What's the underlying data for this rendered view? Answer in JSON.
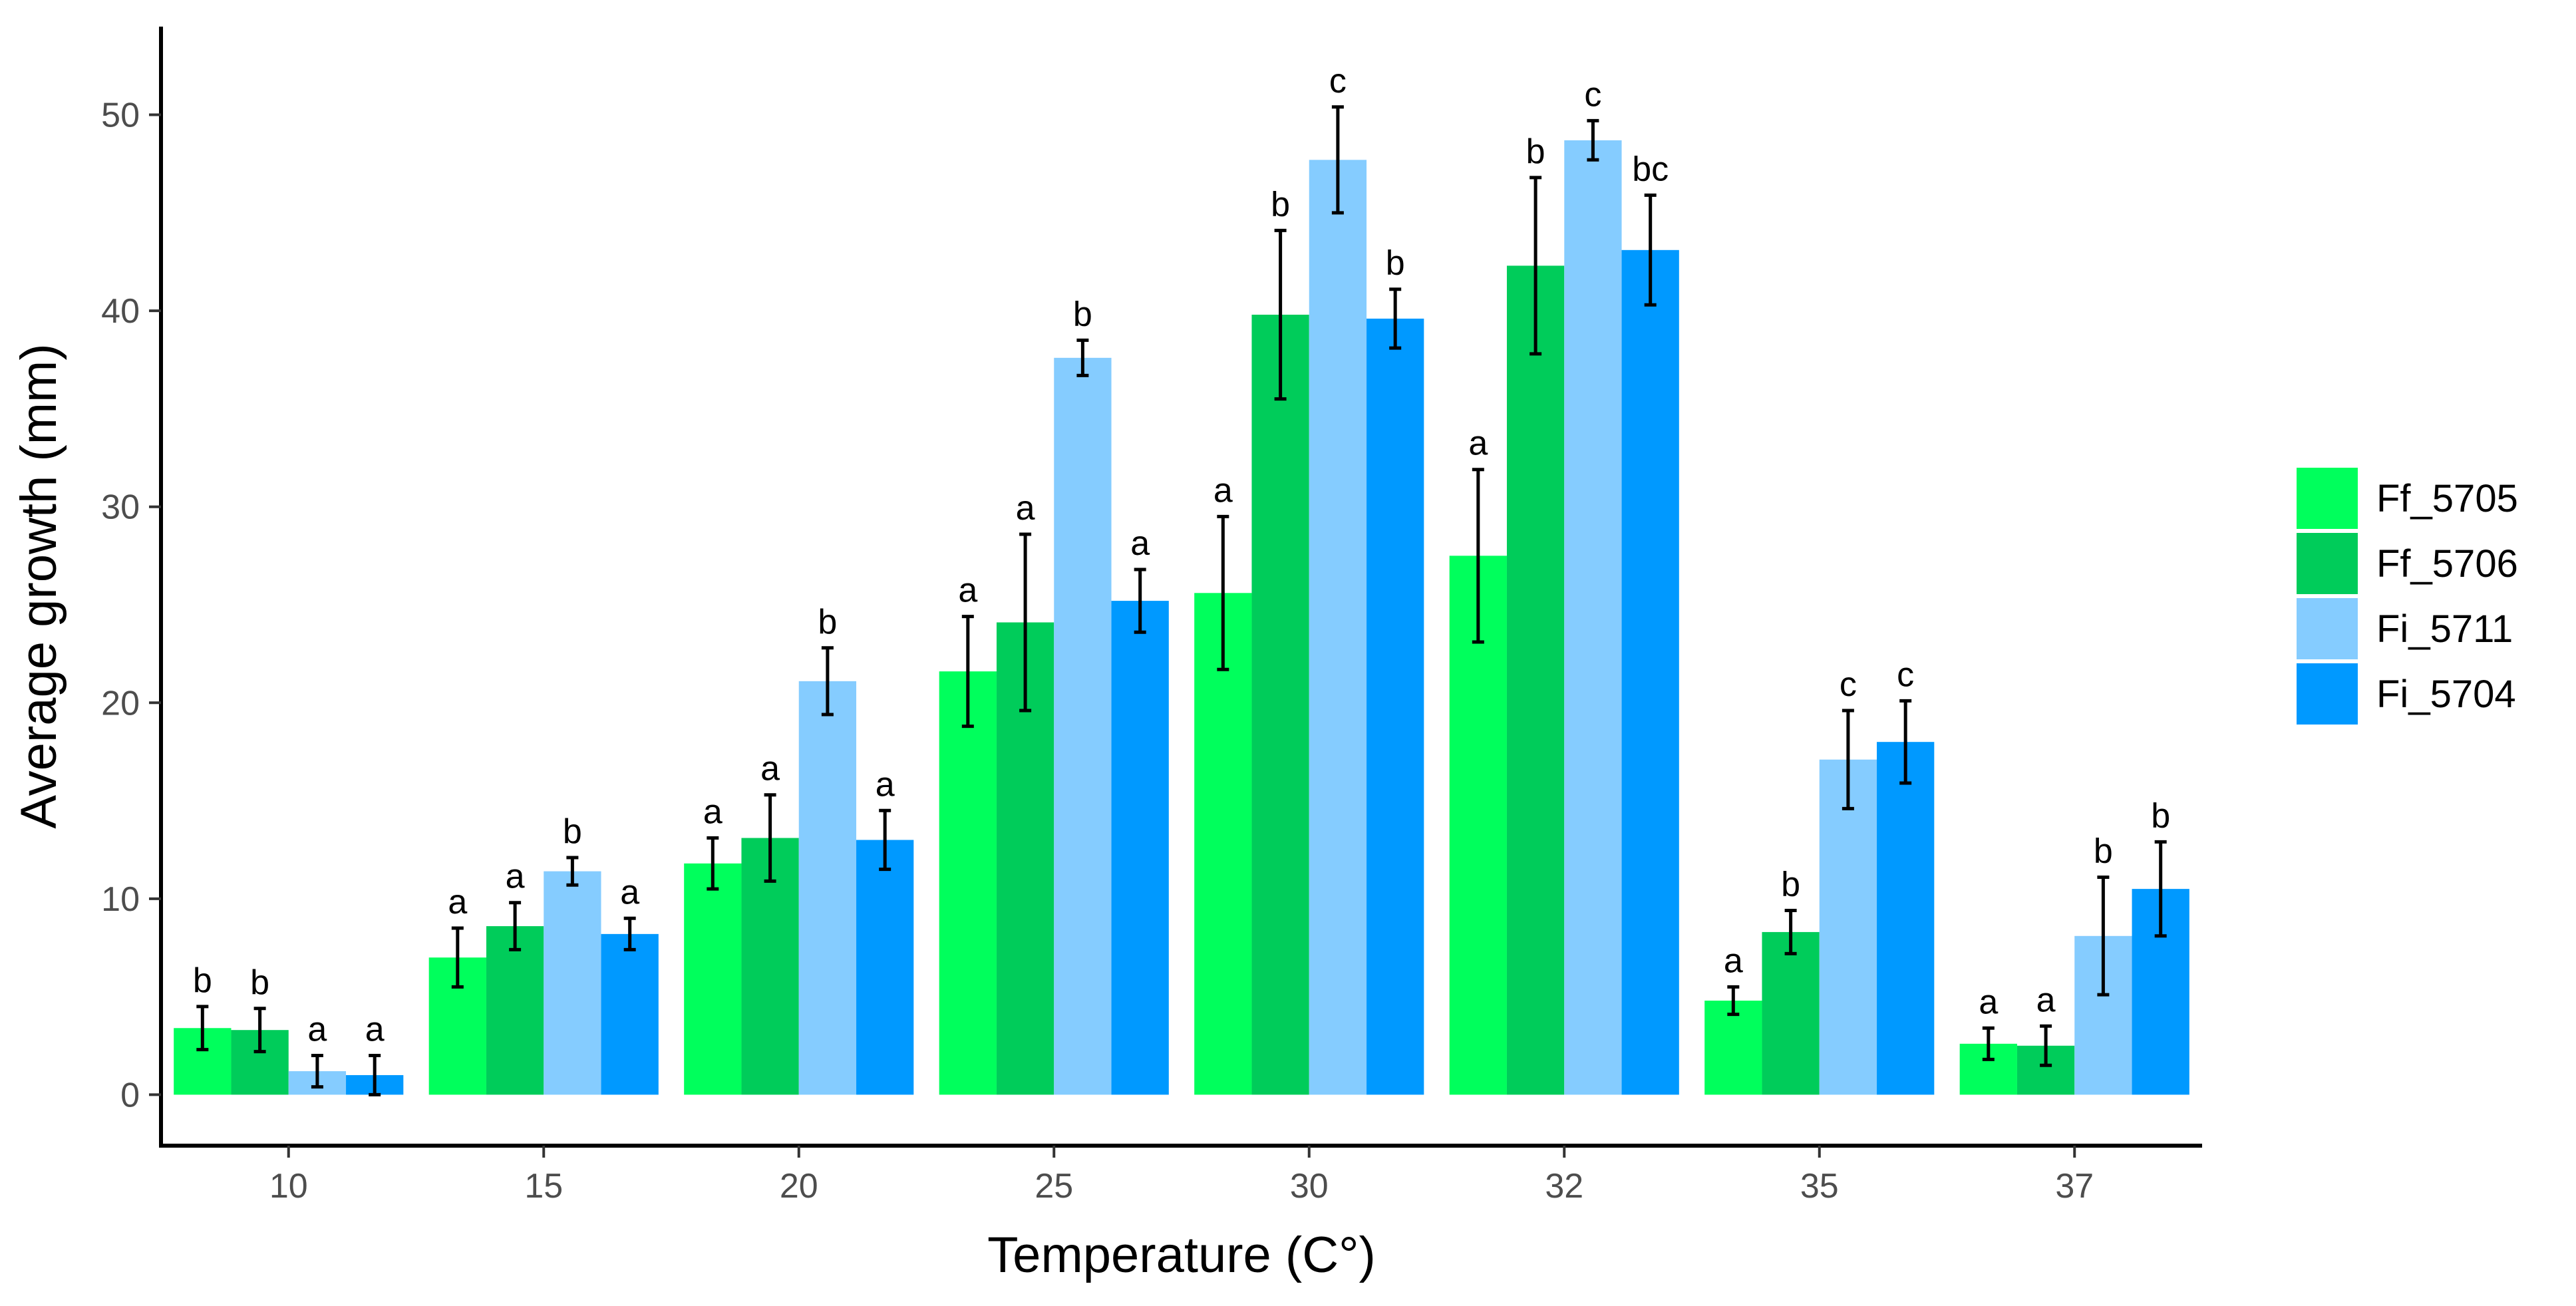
{
  "chart_data": {
    "type": "bar",
    "xlabel": "Temperature (C°)",
    "ylabel": "Average growth (mm)",
    "ylim": [
      -2.6,
      54.5
    ],
    "yticks": [
      0,
      10,
      20,
      30,
      40,
      50
    ],
    "grid": false,
    "legend_position": "right",
    "categories": [
      "10",
      "15",
      "20",
      "25",
      "30",
      "32",
      "35",
      "37"
    ],
    "series": [
      {
        "name": "Ff_5705",
        "color": "#00ff5c",
        "values": [
          3.4,
          7.0,
          11.8,
          21.6,
          25.6,
          27.5,
          4.8,
          2.6
        ],
        "error": [
          1.1,
          1.5,
          1.3,
          2.8,
          3.9,
          4.4,
          0.7,
          0.8
        ],
        "labels": [
          "b",
          "a",
          "a",
          "a",
          "a",
          "a",
          "a",
          "a"
        ]
      },
      {
        "name": "Ff_5706",
        "color": "#00cc5a",
        "values": [
          3.3,
          8.6,
          13.1,
          24.1,
          39.8,
          42.3,
          8.3,
          2.5
        ],
        "error": [
          1.1,
          1.2,
          2.2,
          4.5,
          4.3,
          4.5,
          1.1,
          1.0
        ],
        "labels": [
          "b",
          "a",
          "a",
          "a",
          "b",
          "b",
          "b",
          "a"
        ]
      },
      {
        "name": "Fi_5711",
        "color": "#85ccff",
        "values": [
          1.2,
          11.4,
          21.1,
          37.6,
          47.7,
          48.7,
          17.1,
          8.1
        ],
        "error": [
          0.8,
          0.7,
          1.7,
          0.9,
          2.7,
          1.0,
          2.5,
          3.0
        ],
        "labels": [
          "a",
          "b",
          "b",
          "b",
          "c",
          "c",
          "c",
          "b"
        ]
      },
      {
        "name": "Fi_5704",
        "color": "#0099ff",
        "values": [
          1.0,
          8.2,
          13.0,
          25.2,
          39.6,
          43.1,
          18.0,
          10.5
        ],
        "error": [
          1.0,
          0.8,
          1.5,
          1.6,
          1.5,
          2.8,
          2.1,
          2.4
        ],
        "labels": [
          "a",
          "a",
          "a",
          "a",
          "b",
          "bc",
          "c",
          "b"
        ]
      }
    ]
  }
}
